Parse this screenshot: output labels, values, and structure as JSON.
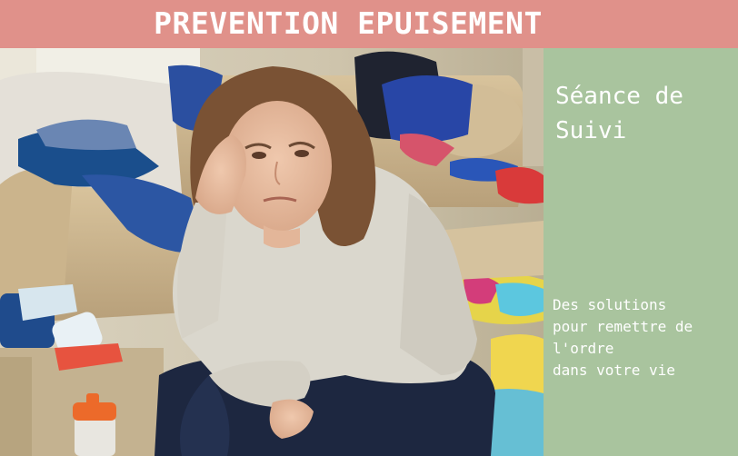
{
  "banner": {
    "title": "PREVENTION EPUISEMENT",
    "background": "#e0918a"
  },
  "panel": {
    "heading_lines": [
      "Séance de",
      "Suivi"
    ],
    "body_lines": [
      "Des solutions",
      "pour remettre de",
      "l'ordre",
      "dans votre vie"
    ],
    "background": "#a9c49e",
    "text_color": "#ffffff"
  },
  "photo": {
    "subject": "woman-sitting-in-cluttered-living-room"
  }
}
